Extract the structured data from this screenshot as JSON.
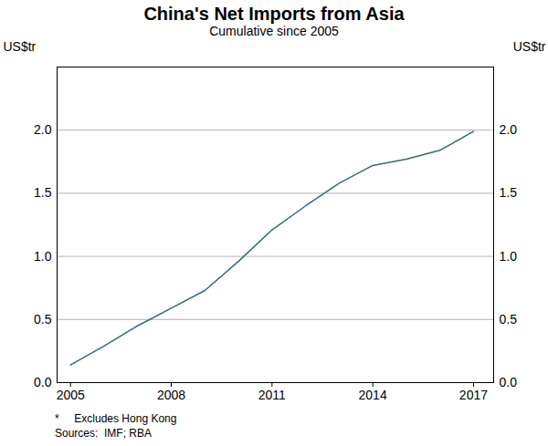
{
  "chart_data": {
    "type": "line",
    "title": "China's Net Imports from Asia",
    "subtitle": "Cumulative since 2005",
    "y_label": "US$tr",
    "y2_label": "US$tr",
    "footnote": "*     Excludes Hong Kong",
    "source": "Sources:  IMF; RBA",
    "x": [
      2005,
      2006,
      2007,
      2008,
      2009,
      2010,
      2011,
      2012,
      2013,
      2014,
      2015,
      2016,
      2017
    ],
    "values": [
      0.14,
      0.29,
      0.45,
      0.59,
      0.73,
      0.96,
      1.21,
      1.4,
      1.58,
      1.72,
      1.77,
      1.84,
      1.99
    ],
    "color": "#36687a",
    "xlim": [
      2004.6,
      2017.6
    ],
    "xticks": [
      2005,
      2008,
      2011,
      2014,
      2017
    ],
    "ylim": [
      0,
      2.5
    ],
    "yticks": [
      {
        "value": 0,
        "label": "0.0"
      },
      0.5,
      {
        "value": 1,
        "label": "1.0"
      },
      1.5,
      {
        "value": 2,
        "label": "2.0"
      }
    ],
    "y2lim": [
      0,
      2.5
    ],
    "y2ticks": [
      {
        "value": 0,
        "label": "0.0"
      },
      0.5,
      {
        "value": 1,
        "label": "1.0"
      },
      1.5,
      {
        "value": 2,
        "label": "2.0"
      }
    ],
    "grid": true
  }
}
